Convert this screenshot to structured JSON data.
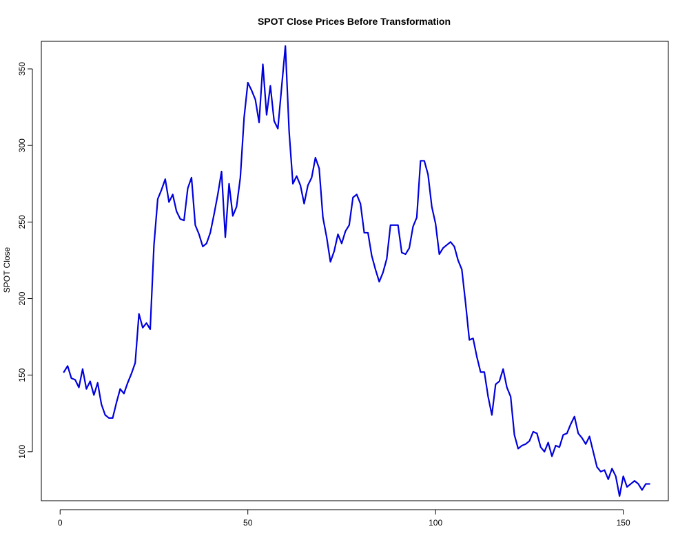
{
  "chart_data": {
    "type": "line",
    "title": "SPOT Close Prices Before Transformation",
    "xlabel": "",
    "ylabel": "SPOT Close",
    "xlim": [
      -5,
      162
    ],
    "ylim": [
      68,
      368
    ],
    "xticks": [
      0,
      50,
      100,
      150
    ],
    "yticks": [
      100,
      150,
      200,
      250,
      300,
      350
    ],
    "grid": false,
    "series_color": "#0000dd",
    "x": [
      1,
      2,
      3,
      4,
      5,
      6,
      7,
      8,
      9,
      10,
      11,
      12,
      13,
      14,
      15,
      16,
      17,
      18,
      19,
      20,
      21,
      22,
      23,
      24,
      25,
      26,
      27,
      28,
      29,
      30,
      31,
      32,
      33,
      34,
      35,
      36,
      37,
      38,
      39,
      40,
      41,
      42,
      43,
      44,
      45,
      46,
      47,
      48,
      49,
      50,
      51,
      52,
      53,
      54,
      55,
      56,
      57,
      58,
      59,
      60,
      61,
      62,
      63,
      64,
      65,
      66,
      67,
      68,
      69,
      70,
      71,
      72,
      73,
      74,
      75,
      76,
      77,
      78,
      79,
      80,
      81,
      82,
      83,
      84,
      85,
      86,
      87,
      88,
      89,
      90,
      91,
      92,
      93,
      94,
      95,
      96,
      97,
      98,
      99,
      100,
      101,
      102,
      103,
      104,
      105,
      106,
      107,
      108,
      109,
      110,
      111,
      112,
      113,
      114,
      115,
      116,
      117,
      118,
      119,
      120,
      121,
      122,
      123,
      124,
      125,
      126,
      127,
      128,
      129,
      130,
      131,
      132,
      133,
      134,
      135,
      136,
      137,
      138,
      139,
      140,
      141,
      142,
      143,
      144,
      145,
      146,
      147,
      148,
      149,
      150,
      151,
      152,
      153,
      154,
      155,
      156,
      157
    ],
    "values": [
      152,
      156,
      148,
      147,
      142,
      154,
      141,
      146,
      137,
      145,
      131,
      124,
      122,
      122,
      132,
      141,
      138,
      145,
      151,
      158,
      190,
      181,
      184,
      180,
      235,
      265,
      271,
      278,
      263,
      268,
      257,
      252,
      251,
      272,
      279,
      248,
      242,
      234,
      236,
      243,
      255,
      268,
      283,
      240,
      275,
      254,
      260,
      279,
      318,
      341,
      336,
      330,
      315,
      353,
      320,
      339,
      316,
      311,
      338,
      365,
      309,
      275,
      280,
      274,
      262,
      274,
      279,
      292,
      285,
      253,
      240,
      224,
      231,
      242,
      236,
      244,
      248,
      266,
      268,
      262,
      243,
      243,
      228,
      219,
      211,
      217,
      226,
      248,
      248,
      248,
      230,
      229,
      233,
      247,
      253,
      290,
      290,
      281,
      260,
      249,
      229,
      233,
      235,
      237,
      234,
      225,
      219,
      197,
      173,
      174,
      162,
      152,
      152,
      136,
      124,
      144,
      146,
      154,
      142,
      136,
      111,
      102,
      104,
      105,
      107,
      113,
      112,
      103,
      100,
      106,
      97,
      104,
      103,
      111,
      112,
      118,
      123,
      112,
      109,
      105,
      110,
      100,
      90,
      87,
      88,
      82,
      89,
      84,
      71,
      84,
      77,
      79,
      81,
      79,
      75,
      79,
      79
    ]
  }
}
